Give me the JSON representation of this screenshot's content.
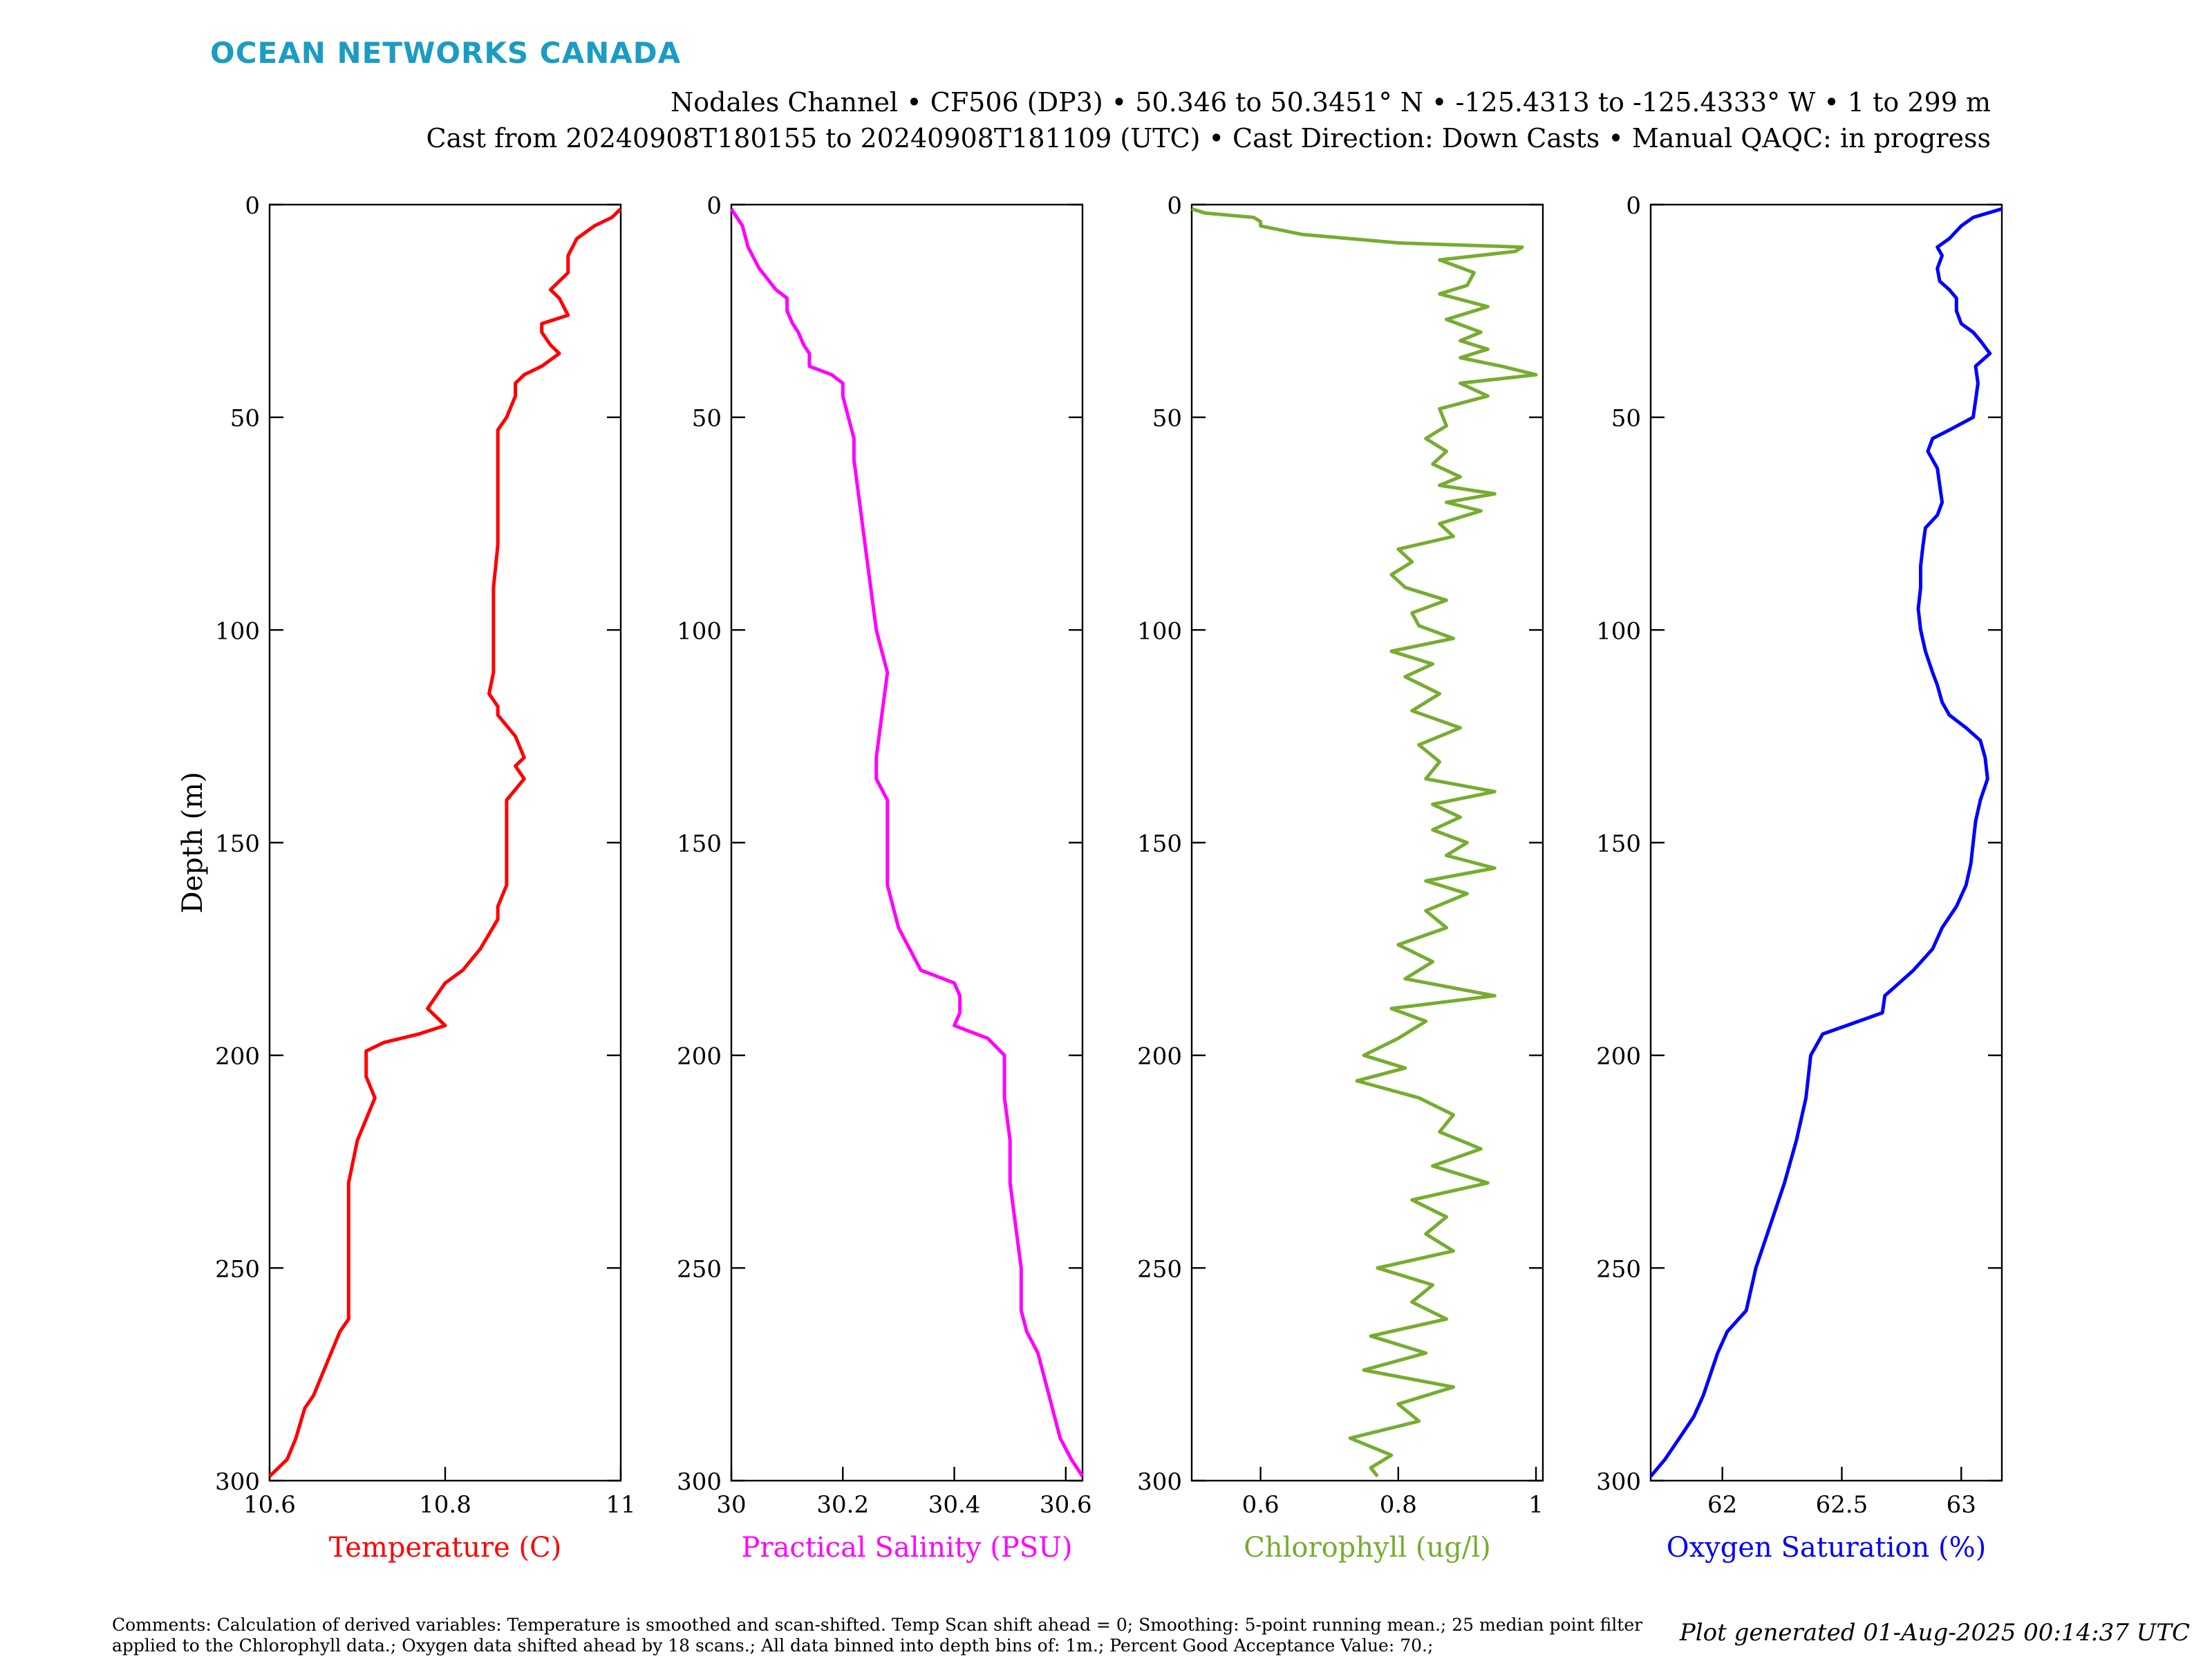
{
  "header": {
    "logo_text": "OCEAN NETWORKS CANADA",
    "title_line1": "Nodales Channel • CF506 (DP3) • 50.346 to 50.3451° N • -125.4313 to -125.4333° W • 1 to 299 m",
    "title_line2": "Cast from 20240908T180155 to 20240908T181109 (UTC) • Cast Direction: Down Casts • Manual QAQC: in progress"
  },
  "footer": {
    "comments": "Comments: Calculation of derived variables: Temperature is smoothed and scan-shifted. Temp Scan shift ahead = 0; Smoothing: 5-point running mean.; 25 median point filter applied to the Chlorophyll data.; Oxygen data shifted ahead by 18 scans.; All data binned into depth bins of: 1m.; Percent Good Acceptance Value: 70.;",
    "generated": "Plot generated 01-Aug-2025 00:14:37 UTC"
  },
  "chart_data": [
    {
      "type": "line",
      "xlabel": "Temperature (C)",
      "ylabel": "Depth (m)",
      "color": "#ff0000",
      "xlim": [
        10.6,
        11.0
      ],
      "ylim": [
        0,
        300
      ],
      "y_reversed": true,
      "xticks": [
        "10.6",
        "10.8",
        "11"
      ],
      "yticks": [
        "0",
        "50",
        "100",
        "150",
        "200",
        "250",
        "300"
      ],
      "depth": [
        1,
        3,
        5,
        8,
        12,
        16,
        20,
        22,
        26,
        28,
        30,
        33,
        35,
        38,
        40,
        42,
        45,
        50,
        53,
        60,
        70,
        80,
        90,
        100,
        110,
        115,
        118,
        120,
        125,
        130,
        132,
        135,
        140,
        150,
        160,
        165,
        168,
        175,
        180,
        183,
        186,
        189,
        191,
        193,
        195,
        197,
        199,
        205,
        210,
        215,
        220,
        230,
        240,
        250,
        255,
        262,
        265,
        270,
        275,
        280,
        283,
        290,
        295,
        299
      ],
      "values": [
        11.0,
        10.99,
        10.97,
        10.95,
        10.94,
        10.94,
        10.92,
        10.93,
        10.94,
        10.91,
        10.91,
        10.92,
        10.93,
        10.91,
        10.89,
        10.88,
        10.88,
        10.87,
        10.86,
        10.86,
        10.86,
        10.86,
        10.855,
        10.855,
        10.855,
        10.85,
        10.86,
        10.86,
        10.88,
        10.89,
        10.88,
        10.89,
        10.87,
        10.87,
        10.87,
        10.86,
        10.86,
        10.84,
        10.82,
        10.8,
        10.79,
        10.78,
        10.79,
        10.8,
        10.77,
        10.73,
        10.71,
        10.71,
        10.72,
        10.71,
        10.7,
        10.69,
        10.69,
        10.69,
        10.69,
        10.69,
        10.68,
        10.67,
        10.66,
        10.65,
        10.64,
        10.63,
        10.62,
        10.6
      ]
    },
    {
      "type": "line",
      "xlabel": "Practical Salinity (PSU)",
      "color": "#ff00ff",
      "xlim": [
        30.0,
        30.63
      ],
      "ylim": [
        0,
        300
      ],
      "y_reversed": true,
      "xticks": [
        "30",
        "30.2",
        "30.4",
        "30.6"
      ],
      "yticks": [
        "0",
        "50",
        "100",
        "150",
        "200",
        "250",
        "300"
      ],
      "depth": [
        1,
        5,
        10,
        15,
        20,
        22,
        25,
        28,
        30,
        33,
        35,
        38,
        40,
        42,
        45,
        50,
        55,
        60,
        70,
        80,
        90,
        100,
        105,
        110,
        120,
        130,
        135,
        140,
        150,
        160,
        170,
        175,
        180,
        183,
        186,
        190,
        193,
        196,
        200,
        210,
        220,
        230,
        240,
        250,
        260,
        265,
        270,
        275,
        280,
        285,
        290,
        295,
        299
      ],
      "values": [
        30.0,
        30.02,
        30.03,
        30.05,
        30.08,
        30.1,
        30.1,
        30.11,
        30.12,
        30.13,
        30.14,
        30.14,
        30.18,
        30.2,
        30.2,
        30.21,
        30.22,
        30.22,
        30.23,
        30.24,
        30.25,
        30.26,
        30.27,
        30.28,
        30.27,
        30.26,
        30.26,
        30.28,
        30.28,
        30.28,
        30.3,
        30.32,
        30.34,
        30.4,
        30.41,
        30.41,
        30.4,
        30.46,
        30.49,
        30.49,
        30.5,
        30.5,
        30.51,
        30.52,
        30.52,
        30.53,
        30.55,
        30.56,
        30.57,
        30.58,
        30.59,
        30.61,
        30.63
      ]
    },
    {
      "type": "line",
      "xlabel": "Chlorophyll (ug/l)",
      "color": "#77ac30",
      "xlim": [
        0.5,
        1.01
      ],
      "ylim": [
        0,
        300
      ],
      "y_reversed": true,
      "xticks": [
        "0.6",
        "0.8",
        "1"
      ],
      "yticks": [
        "0",
        "50",
        "100",
        "150",
        "200",
        "250",
        "300"
      ],
      "depth": [
        1,
        2,
        3,
        4,
        5,
        7,
        9,
        10,
        11,
        13,
        16,
        19,
        21,
        24,
        27,
        30,
        32,
        34,
        36,
        38,
        40,
        42,
        45,
        48,
        52,
        55,
        58,
        61,
        64,
        66,
        68,
        70,
        72,
        75,
        78,
        81,
        84,
        87,
        90,
        93,
        96,
        99,
        102,
        105,
        108,
        111,
        115,
        119,
        123,
        127,
        131,
        135,
        138,
        141,
        144,
        147,
        150,
        153,
        156,
        159,
        162,
        166,
        170,
        174,
        178,
        182,
        186,
        189,
        192,
        196,
        200,
        203,
        206,
        210,
        214,
        218,
        222,
        226,
        230,
        234,
        238,
        242,
        246,
        250,
        254,
        258,
        262,
        266,
        270,
        274,
        278,
        282,
        286,
        290,
        294,
        297,
        299
      ],
      "values": [
        0.5,
        0.52,
        0.59,
        0.6,
        0.6,
        0.66,
        0.8,
        0.98,
        0.97,
        0.86,
        0.91,
        0.9,
        0.86,
        0.93,
        0.87,
        0.92,
        0.89,
        0.93,
        0.89,
        0.95,
        1.0,
        0.89,
        0.93,
        0.86,
        0.87,
        0.84,
        0.87,
        0.85,
        0.89,
        0.86,
        0.94,
        0.87,
        0.92,
        0.86,
        0.88,
        0.8,
        0.82,
        0.79,
        0.81,
        0.87,
        0.82,
        0.83,
        0.88,
        0.79,
        0.85,
        0.81,
        0.86,
        0.82,
        0.89,
        0.83,
        0.86,
        0.84,
        0.94,
        0.85,
        0.89,
        0.85,
        0.9,
        0.87,
        0.94,
        0.84,
        0.9,
        0.84,
        0.87,
        0.8,
        0.85,
        0.81,
        0.94,
        0.79,
        0.84,
        0.8,
        0.75,
        0.81,
        0.74,
        0.83,
        0.88,
        0.86,
        0.92,
        0.85,
        0.93,
        0.82,
        0.87,
        0.84,
        0.88,
        0.77,
        0.85,
        0.82,
        0.87,
        0.76,
        0.84,
        0.75,
        0.88,
        0.8,
        0.83,
        0.73,
        0.79,
        0.76,
        0.77
      ]
    },
    {
      "type": "line",
      "xlabel": "Oxygen Saturation (%)",
      "color": "#0000ff",
      "xlim": [
        61.7,
        63.17
      ],
      "ylim": [
        0,
        300
      ],
      "y_reversed": true,
      "xticks": [
        "62",
        "62.5",
        "63"
      ],
      "yticks": [
        "0",
        "50",
        "100",
        "150",
        "200",
        "250",
        "300"
      ],
      "depth": [
        1,
        3,
        5,
        8,
        10,
        12,
        15,
        18,
        20,
        22,
        25,
        28,
        30,
        32,
        35,
        38,
        42,
        46,
        50,
        53,
        55,
        58,
        62,
        66,
        70,
        73,
        76,
        80,
        85,
        90,
        95,
        100,
        105,
        110,
        113,
        117,
        120,
        123,
        126,
        130,
        135,
        140,
        145,
        150,
        155,
        160,
        165,
        170,
        175,
        180,
        183,
        186,
        190,
        193,
        195,
        200,
        210,
        220,
        230,
        240,
        250,
        260,
        265,
        270,
        275,
        280,
        285,
        290,
        295,
        299
      ],
      "values": [
        63.17,
        63.05,
        63.0,
        62.95,
        62.9,
        62.92,
        62.9,
        62.91,
        62.95,
        62.98,
        62.98,
        63.0,
        63.05,
        63.08,
        63.12,
        63.06,
        63.07,
        63.06,
        63.05,
        62.95,
        62.88,
        62.86,
        62.9,
        62.91,
        62.92,
        62.9,
        62.85,
        62.84,
        62.83,
        62.83,
        62.82,
        62.83,
        62.85,
        62.88,
        62.9,
        62.92,
        62.95,
        63.02,
        63.08,
        63.1,
        63.11,
        63.08,
        63.06,
        63.05,
        63.04,
        63.02,
        62.98,
        62.92,
        62.88,
        62.8,
        62.74,
        62.68,
        62.67,
        62.52,
        62.42,
        62.37,
        62.35,
        62.31,
        62.26,
        62.2,
        62.14,
        62.1,
        62.02,
        61.98,
        61.95,
        61.92,
        61.88,
        61.82,
        61.76,
        61.7
      ]
    }
  ]
}
